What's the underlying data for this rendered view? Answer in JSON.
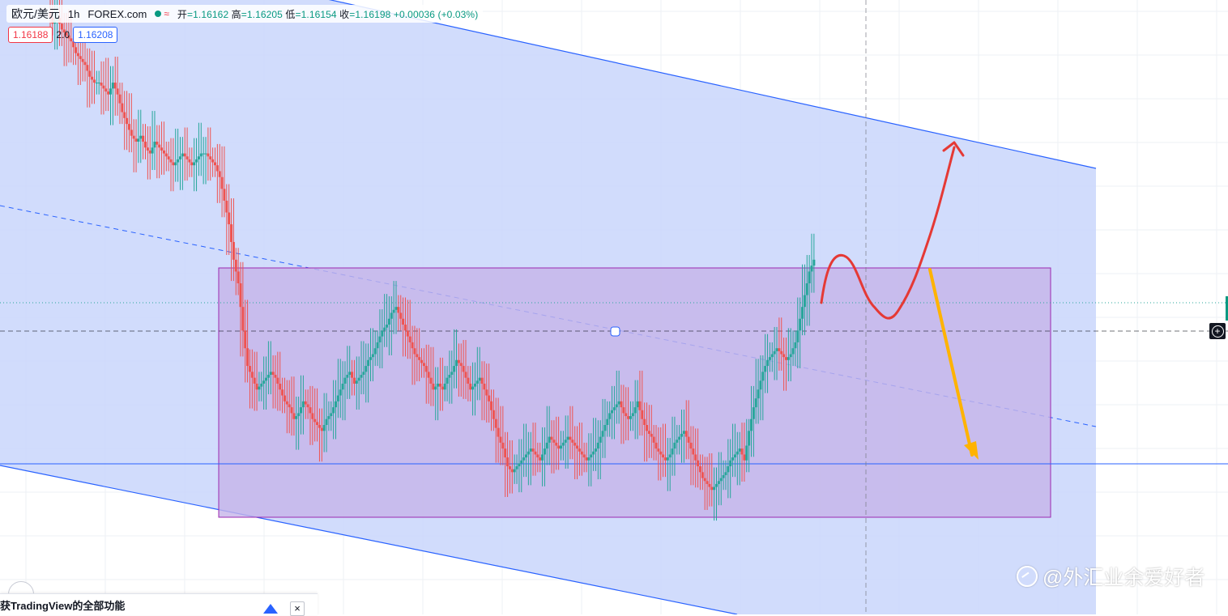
{
  "header": {
    "pair": "欧元/美元",
    "interval": "1h",
    "source": "FOREX.com",
    "wave_icon": "≈",
    "ohlc": {
      "open_label": "开",
      "open": "=1.16162",
      "high_label": "高",
      "high": "=1.16205",
      "low_label": "低",
      "low": "=1.16154",
      "close_label": "收",
      "close": "=1.16198",
      "change": "+0.00036 (+0.03%)"
    }
  },
  "trade": {
    "sell": "1.16188",
    "spread": "2.0",
    "buy": "1.16208"
  },
  "bottom_bar": {
    "text": "获TradingView的全部功能"
  },
  "watermark": {
    "text": "@外汇业余爱好者"
  },
  "colors": {
    "up": "#26a69a",
    "down": "#ef5350",
    "channel_fill": "#c9d6fb",
    "range_fill": "#c5b4e8",
    "range_border": "#9c27b0",
    "line_blue": "#2962ff",
    "arrow_red": "#e53935",
    "arrow_orange": "#ffb300"
  },
  "chart_data": {
    "type": "candlestick",
    "series": [
      {
        "name": "",
        "closes": [
          1.166,
          1.1661,
          1.1659,
          1.1658,
          1.1657,
          1.1655,
          1.1654,
          1.1653,
          1.1651,
          1.165,
          1.165,
          1.1649,
          1.1648,
          1.165,
          1.1648,
          1.1645,
          1.1643,
          1.1641,
          1.164,
          1.1641,
          1.1639,
          1.1638,
          1.164,
          1.1639,
          1.1638,
          1.1637,
          1.1636,
          1.1637,
          1.1638,
          1.1637,
          1.1636,
          1.1637,
          1.1638,
          1.1638,
          1.1637,
          1.1636,
          1.1634,
          1.163,
          1.1626,
          1.162,
          1.1616,
          1.1608,
          1.1602,
          1.16,
          1.1598,
          1.1599,
          1.16,
          1.1601,
          1.16,
          1.1598,
          1.1596,
          1.1595,
          1.1593,
          1.1594,
          1.1596,
          1.1595,
          1.1593,
          1.1592,
          1.1591,
          1.1593,
          1.1594,
          1.1596,
          1.1598,
          1.16,
          1.1601,
          1.1599,
          1.16,
          1.1601,
          1.1603,
          1.1604,
          1.1606,
          1.1608,
          1.1609,
          1.1611,
          1.1612,
          1.161,
          1.1608,
          1.1606,
          1.1604,
          1.1603,
          1.1602,
          1.16,
          1.1598,
          1.1599,
          1.1598,
          1.16,
          1.1601,
          1.1603,
          1.1602,
          1.16,
          1.1598,
          1.1599,
          1.16,
          1.1598,
          1.1596,
          1.1593,
          1.159,
          1.1588,
          1.1585,
          1.1584,
          1.1585,
          1.1586,
          1.1587,
          1.1588,
          1.1587,
          1.1586,
          1.1588,
          1.159,
          1.1589,
          1.1588,
          1.1589,
          1.159,
          1.1589,
          1.1588,
          1.1587,
          1.1586,
          1.1587,
          1.1588,
          1.159,
          1.1592,
          1.1594,
          1.1595,
          1.1596,
          1.1594,
          1.1593,
          1.1594,
          1.1596,
          1.1593,
          1.1591,
          1.159,
          1.1588,
          1.1587,
          1.1586,
          1.1587,
          1.1589,
          1.159,
          1.1591,
          1.1589,
          1.1587,
          1.1585,
          1.1583,
          1.1582,
          1.1581,
          1.1582,
          1.1583,
          1.1584,
          1.1586,
          1.1587,
          1.1588,
          1.1586,
          1.1591,
          1.1595,
          1.1598,
          1.1601,
          1.1603,
          1.1604,
          1.1605,
          1.1604,
          1.1603,
          1.1604,
          1.1606,
          1.161,
          1.1614,
          1.1618,
          1.162
        ],
        "ylim": [
          1.1568,
          1.1664
        ]
      }
    ],
    "annotations": [
      "descending channel",
      "consolidation range",
      "scenario up",
      "scenario down"
    ],
    "grid": true
  }
}
